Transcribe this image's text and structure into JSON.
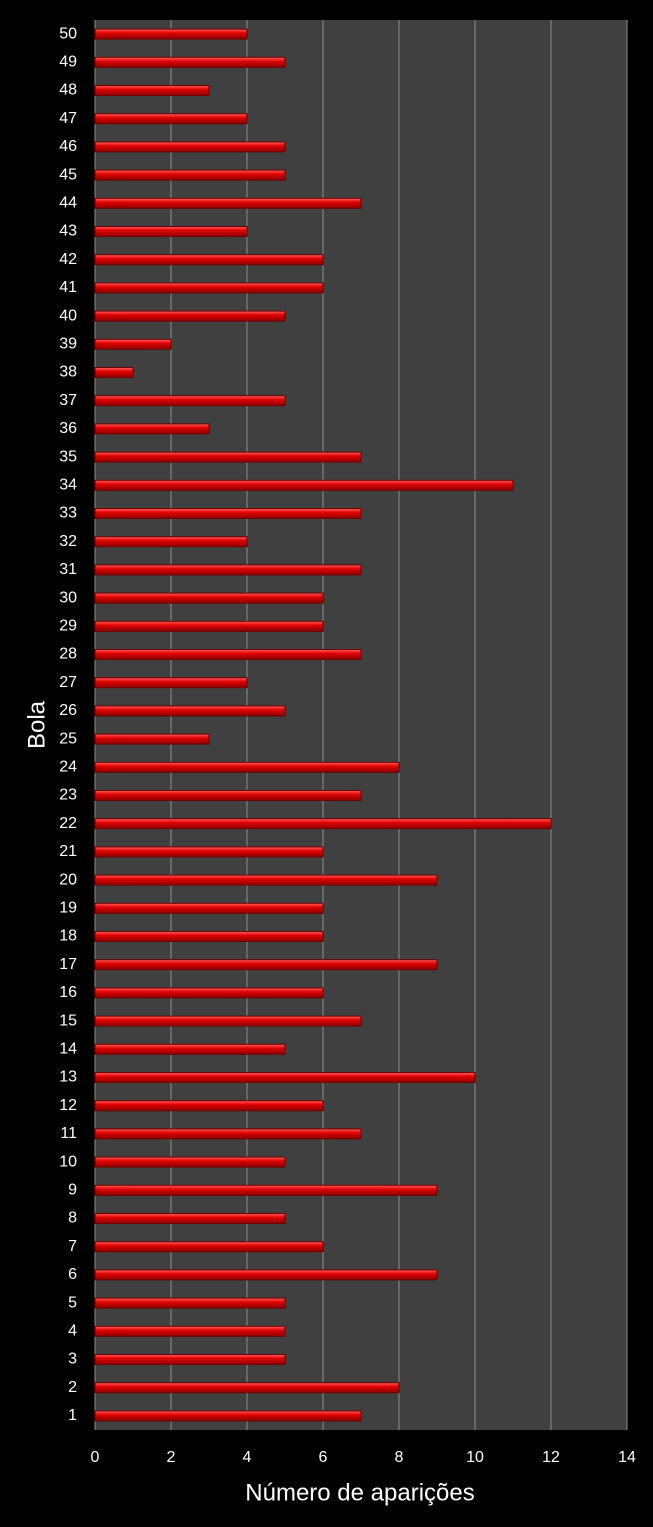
{
  "chart_data": {
    "type": "bar",
    "orientation": "horizontal",
    "x_label": "Número de aparições",
    "y_label": "Bola",
    "categories": [
      "1",
      "2",
      "3",
      "4",
      "5",
      "6",
      "7",
      "8",
      "9",
      "10",
      "11",
      "12",
      "13",
      "14",
      "15",
      "16",
      "17",
      "18",
      "19",
      "20",
      "21",
      "22",
      "23",
      "24",
      "25",
      "26",
      "27",
      "28",
      "29",
      "30",
      "31",
      "32",
      "33",
      "34",
      "35",
      "36",
      "37",
      "38",
      "39",
      "40",
      "41",
      "42",
      "43",
      "44",
      "45",
      "46",
      "47",
      "48",
      "49",
      "50"
    ],
    "values": [
      7,
      8,
      5,
      5,
      5,
      9,
      6,
      5,
      9,
      5,
      7,
      6,
      10,
      5,
      7,
      6,
      9,
      6,
      6,
      9,
      6,
      12,
      7,
      8,
      3,
      5,
      4,
      7,
      6,
      6,
      7,
      4,
      7,
      11,
      7,
      3,
      5,
      1,
      2,
      5,
      6,
      6,
      4,
      7,
      5,
      5,
      4,
      3,
      5,
      4
    ],
    "color": "#e00000",
    "xlim": [
      0,
      14
    ],
    "xticks": [
      0,
      2,
      4,
      6,
      8,
      10,
      12,
      14
    ],
    "grid": true
  }
}
